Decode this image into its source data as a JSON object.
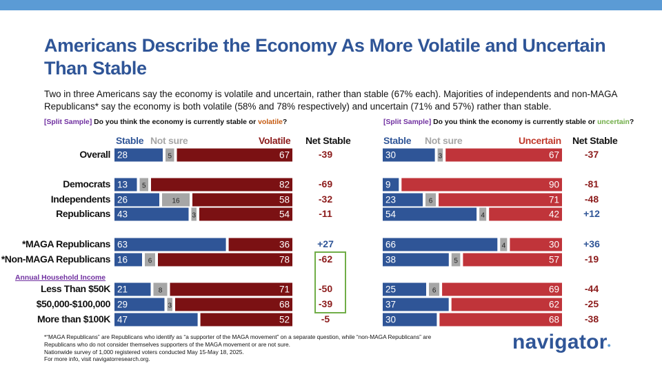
{
  "title": "Americans Describe the Economy As More Volatile and Uncertain Than Stable",
  "subtitle": "Two in three Americans say the economy is volatile and uncertain, rather than stable (67% each). Majorities of independents and non-MAGA Republicans* say the economy is both volatile (58% and 78% respectively) and uncertain (71% and 57%) rather than stable.",
  "questions": {
    "left": {
      "split": "[Split Sample]",
      "text_before": "Do you think the economy is currently stable or",
      "keyword": "volatile",
      "text_after": "?"
    },
    "right": {
      "split": "[Split Sample]",
      "text_before": "Do you think the economy is currently stable or",
      "keyword": "uncertain",
      "text_after": "?"
    }
  },
  "headers": {
    "stable": "Stable",
    "not_sure": "Not sure",
    "volatile": "Volatile",
    "uncertain": "Uncertain",
    "net_stable": "Net Stable"
  },
  "income_label": "Annual Household Income",
  "colors": {
    "stable": "#2f5597",
    "not_sure": "#a6a6a6",
    "volatile": "#7b1113",
    "uncertain": "#c0343a",
    "accent_purple": "#7030a0",
    "highlight_green": "#70ad47"
  },
  "chart_data": [
    {
      "type": "bar",
      "stacked": true,
      "title": "Do you think the economy is currently stable or volatile?",
      "categories": [
        "Overall",
        "Democrats",
        "Independents",
        "Republicans",
        "*MAGA Republicans",
        "*Non-MAGA Republicans",
        "Less Than $50K",
        "$50,000-$100,000",
        "More than $100K"
      ],
      "series": [
        {
          "name": "Stable",
          "values": [
            28,
            13,
            26,
            43,
            63,
            16,
            21,
            29,
            47
          ]
        },
        {
          "name": "Not sure",
          "values": [
            5,
            5,
            16,
            3,
            null,
            6,
            8,
            3,
            null
          ]
        },
        {
          "name": "Volatile",
          "values": [
            67,
            82,
            58,
            54,
            36,
            78,
            71,
            68,
            52
          ]
        }
      ],
      "net_stable": [
        "-39",
        "-69",
        "-32",
        "-11",
        "+27",
        "-62",
        "-50",
        "-39",
        "-5"
      ]
    },
    {
      "type": "bar",
      "stacked": true,
      "title": "Do you think the economy is currently stable or uncertain?",
      "categories": [
        "Overall",
        "Democrats",
        "Independents",
        "Republicans",
        "*MAGA Republicans",
        "*Non-MAGA Republicans",
        "Less Than $50K",
        "$50,000-$100,000",
        "More than $100K"
      ],
      "series": [
        {
          "name": "Stable",
          "values": [
            30,
            9,
            23,
            54,
            66,
            38,
            25,
            37,
            30
          ]
        },
        {
          "name": "Not sure",
          "values": [
            3,
            null,
            6,
            4,
            4,
            5,
            6,
            null,
            null
          ]
        },
        {
          "name": "Uncertain",
          "values": [
            67,
            90,
            71,
            42,
            30,
            57,
            69,
            62,
            68
          ]
        }
      ],
      "net_stable": [
        "-37",
        "-81",
        "-48",
        "+12",
        "+36",
        "-19",
        "-44",
        "-25",
        "-38"
      ]
    }
  ],
  "footnote": [
    "*“MAGA Republicans” are Republicans who identify as “a supporter of the MAGA movement” on a separate question, while “non-MAGA Republicans” are",
    "Republicans who do not consider themselves supporters of the MAGA movement or are not sure.",
    "Nationwide survey of 1,000 registered voters conducted May 15-May 18, 2025.",
    "For more info, visit navigatorresearch.org."
  ],
  "logo": {
    "text": "navigator",
    "dot": "•"
  }
}
